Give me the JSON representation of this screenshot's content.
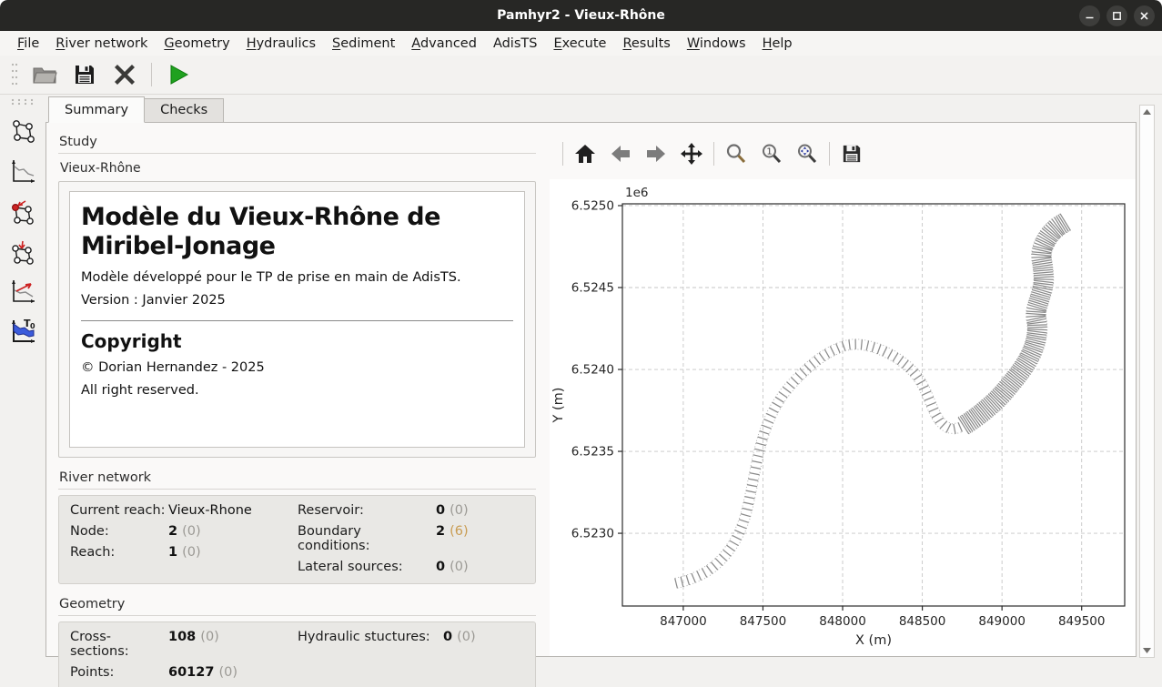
{
  "window": {
    "title": "Pamhyr2 - Vieux-Rhône",
    "controls": [
      "minimize",
      "maximize",
      "close"
    ]
  },
  "menubar": {
    "items": [
      {
        "label": "File",
        "mnemonic": 0
      },
      {
        "label": "River network",
        "mnemonic": 0
      },
      {
        "label": "Geometry",
        "mnemonic": 0
      },
      {
        "label": "Hydraulics",
        "mnemonic": 0
      },
      {
        "label": "Sediment",
        "mnemonic": 0
      },
      {
        "label": "Advanced",
        "mnemonic": 0
      },
      {
        "label": "AdisTS",
        "mnemonic": null
      },
      {
        "label": "Execute",
        "mnemonic": 0
      },
      {
        "label": "Results",
        "mnemonic": 0
      },
      {
        "label": "Windows",
        "mnemonic": 0
      },
      {
        "label": "Help",
        "mnemonic": 0
      }
    ]
  },
  "toolbar": {
    "icons": [
      "folder-open-icon",
      "save-icon",
      "delete-icon",
      "run-icon"
    ],
    "run_color": "#1fa11f"
  },
  "sidebar": {
    "icons": [
      "river-network-icon",
      "geometry-profile-icon",
      "boundary-conditions-icon",
      "lateral-sources-icon",
      "initial-conditions-icon",
      "t0-initial-state-icon"
    ]
  },
  "tabs": [
    {
      "label": "Summary",
      "active": true
    },
    {
      "label": "Checks",
      "active": false
    }
  ],
  "study": {
    "section_label": "Study",
    "group_title": "Vieux-Rhône",
    "doc": {
      "title": "Modèle du Vieux-Rhône de Miribel-Jonage",
      "line1": "Modèle développé pour le TP de prise en main de AdisTS.",
      "line2": "Version : Janvier 2025",
      "copyright_title": "Copyright",
      "copyright_line1": "© Dorian Hernandez - 2025",
      "copyright_line2": "All right reserved."
    }
  },
  "river_network": {
    "section_label": "River network",
    "rows_left": [
      {
        "label": "Current reach:",
        "value": "Vieux-Rhone",
        "extra": ""
      },
      {
        "label": "Node:",
        "value": "2",
        "extra": "(0)"
      },
      {
        "label": "Reach:",
        "value": "1",
        "extra": "(0)"
      }
    ],
    "rows_right": [
      {
        "label": "Reservoir:",
        "value": "0",
        "extra": "(0)",
        "extra_style": "color:#9b9994"
      },
      {
        "label": "Boundary conditions:",
        "value": "2",
        "extra": "(6)",
        "extra_style": "color:#c99c52"
      },
      {
        "label": "Lateral sources:",
        "value": "0",
        "extra": "(0)",
        "extra_style": "color:#9b9994"
      }
    ],
    "warning_color": "#c99c52"
  },
  "geometry": {
    "section_label": "Geometry",
    "rows_left": [
      {
        "label": "Cross-sections:",
        "value": "108",
        "extra": "(0)"
      },
      {
        "label": "Points:",
        "value": "60127",
        "extra": "(0)"
      }
    ],
    "rows_right": [
      {
        "label": "Hydraulic stuctures:",
        "value": "0",
        "extra": "(0)"
      }
    ]
  },
  "plot_toolbar": {
    "icons": [
      "home-icon",
      "back-arrow-icon",
      "forward-arrow-icon",
      "pan-icon",
      "zoom-rect-icon",
      "zoom-initial-icon",
      "zoom-fit-icon",
      "save-figure-icon"
    ]
  },
  "chart_data": {
    "type": "line",
    "description": "River network map: centerline of reach Vieux-Rhone with perpendicular cross-section ticks",
    "xlabel": "X (m)",
    "ylabel": "Y (m)",
    "offset_label": "1e6",
    "xlim": [
      846618,
      849770
    ],
    "ylim": [
      6522556,
      6525011
    ],
    "x_ticks": [
      847000,
      847500,
      848000,
      848500,
      849000,
      849500
    ],
    "x_tick_labels": [
      "847000",
      "847500",
      "848000",
      "848500",
      "849000",
      "849500"
    ],
    "y_ticks": [
      6523000,
      6523500,
      6524000,
      6524500,
      6525000
    ],
    "y_tick_labels": [
      "6.5230",
      "6.5235",
      "6.5240",
      "6.5245",
      "6.5250"
    ],
    "grid": true,
    "grid_style": "dashed",
    "series": [
      {
        "name": "Vieux-Rhone cross-sections",
        "color": "#8a8a8a",
        "edge_color": "#b5b5b5",
        "segments": [
          {
            "spacing_m": 38,
            "half_width_m": 32,
            "points": [
              [
                846955,
                6522695
              ],
              [
                847039,
                6522715
              ],
              [
                847152,
                6522765
              ],
              [
                847253,
                6522849
              ],
              [
                847326,
                6522949
              ],
              [
                847382,
                6523071
              ],
              [
                847416,
                6523211
              ],
              [
                847444,
                6523350
              ],
              [
                847472,
                6523489
              ],
              [
                847511,
                6523628
              ],
              [
                847567,
                6523757
              ],
              [
                847640,
                6523868
              ],
              [
                847730,
                6523963
              ],
              [
                847831,
                6524052
              ],
              [
                847938,
                6524119
              ],
              [
                848051,
                6524158
              ],
              [
                848163,
                6524147
              ],
              [
                848275,
                6524108
              ],
              [
                848388,
                6524041
              ],
              [
                848483,
                6523946
              ],
              [
                848534,
                6523840
              ],
              [
                848579,
                6523729
              ],
              [
                848624,
                6523662
              ],
              [
                848691,
                6523629
              ],
              [
                848759,
                6523657
              ]
            ]
          },
          {
            "spacing_m": 14,
            "half_width_m": 62,
            "points": [
              [
                848759,
                6523657
              ],
              [
                848820,
                6523695
              ],
              [
                848894,
                6523751
              ],
              [
                848978,
                6523823
              ],
              [
                849051,
                6523907
              ],
              [
                849124,
                6523996
              ],
              [
                849180,
                6524085
              ],
              [
                849214,
                6524174
              ],
              [
                849225,
                6524264
              ],
              [
                849208,
                6524342
              ],
              [
                849236,
                6524431
              ],
              [
                849264,
                6524525
              ],
              [
                849258,
                6524620
              ],
              [
                849242,
                6524709
              ],
              [
                849275,
                6524793
              ],
              [
                849331,
                6524860
              ],
              [
                849404,
                6524904
              ]
            ]
          }
        ]
      }
    ]
  }
}
